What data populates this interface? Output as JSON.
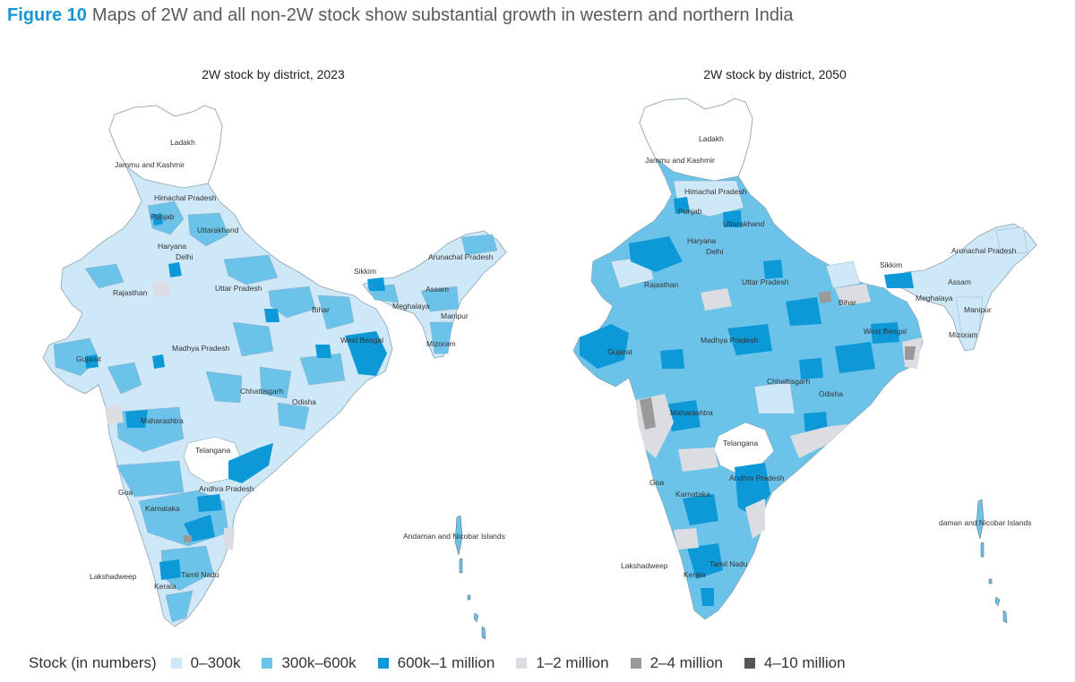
{
  "figure": {
    "number": "Figure 10",
    "title": "Maps of 2W and all non-2W stock show substantial growth in western and northern India"
  },
  "maps": [
    {
      "title": "2W stock by district, 2023",
      "labels": {
        "ladakh": "Ladakh",
        "jk": "Jammu and Kashmir",
        "hp": "Himachal Pradesh",
        "punjab": "Punjab",
        "uttarakhand": "Uttarakhand",
        "haryana": "Haryana",
        "delhi": "Delhi",
        "rajasthan": "Rajasthan",
        "up": "Uttar Pradesh",
        "sikkim": "Sikkim",
        "arunachal": "Arunachal Pradesh",
        "assam": "Assam",
        "meghalaya": "Meghalaya",
        "manipur": "Manipur",
        "mizoram": "Mizoram",
        "bihar": "Bihar",
        "wb": "West Bengal",
        "mp": "Madhya Pradesh",
        "gujarat": "Gujarat",
        "chhattisgarh": "Chhattisgarh",
        "odisha": "Odisha",
        "maharashtra": "Maharashtra",
        "telangana": "Telangana",
        "ap": "Andhra Pradesh",
        "goa": "Goa",
        "karnataka": "Karnataka",
        "andaman": "Andaman and Nicobar Islands",
        "lakshadweep": "Lakshadweep",
        "tn": "Tamil Nadu",
        "kerala": "Kerala"
      }
    },
    {
      "title": "2W stock by district, 2050",
      "labels": {
        "ladakh": "Ladakh",
        "jk": "Jammu and Kashmir",
        "hp": "Himachal Pradesh",
        "punjab": "Punjab",
        "uttarakhand": "Uttarakhand",
        "haryana": "Haryana",
        "delhi": "Delhi",
        "rajasthan": "Rajasthan",
        "up": "Uttar Pradesh",
        "sikkim": "Sikkim",
        "arunachal": "Arunachal Pradesh",
        "assam": "Assam",
        "meghalaya": "Meghalaya",
        "manipur": "Manipur",
        "mizoram": "Mizoram",
        "bihar": "Bihar",
        "wb": "West Bengal",
        "mp": "Madhya Pradesh",
        "gujarat": "Gujarat",
        "chhattisgarh": "Chhattisgarh",
        "odisha": "Odisha",
        "maharashtra": "Maharashtra",
        "telangana": "Telangana",
        "ap": "Andhra Pradesh",
        "goa": "Goa",
        "karnataka": "Karnataka",
        "andaman": "daman and Nicobar Islands",
        "lakshadweep": "Lakshadweep",
        "tn": "Tamil Nadu",
        "kerala": "Kerala"
      }
    }
  ],
  "legend": {
    "title": "Stock (in numbers)",
    "items": [
      {
        "label": "0–300k",
        "color": "#cfe8f7"
      },
      {
        "label": "300k–600k",
        "color": "#6cc3ea"
      },
      {
        "label": "600k–1 million",
        "color": "#0d98d7"
      },
      {
        "label": "1–2 million",
        "color": "#dcdde2"
      },
      {
        "label": "2–4 million",
        "color": "#9a9a9a"
      },
      {
        "label": "4–10 million",
        "color": "#555555"
      }
    ]
  }
}
